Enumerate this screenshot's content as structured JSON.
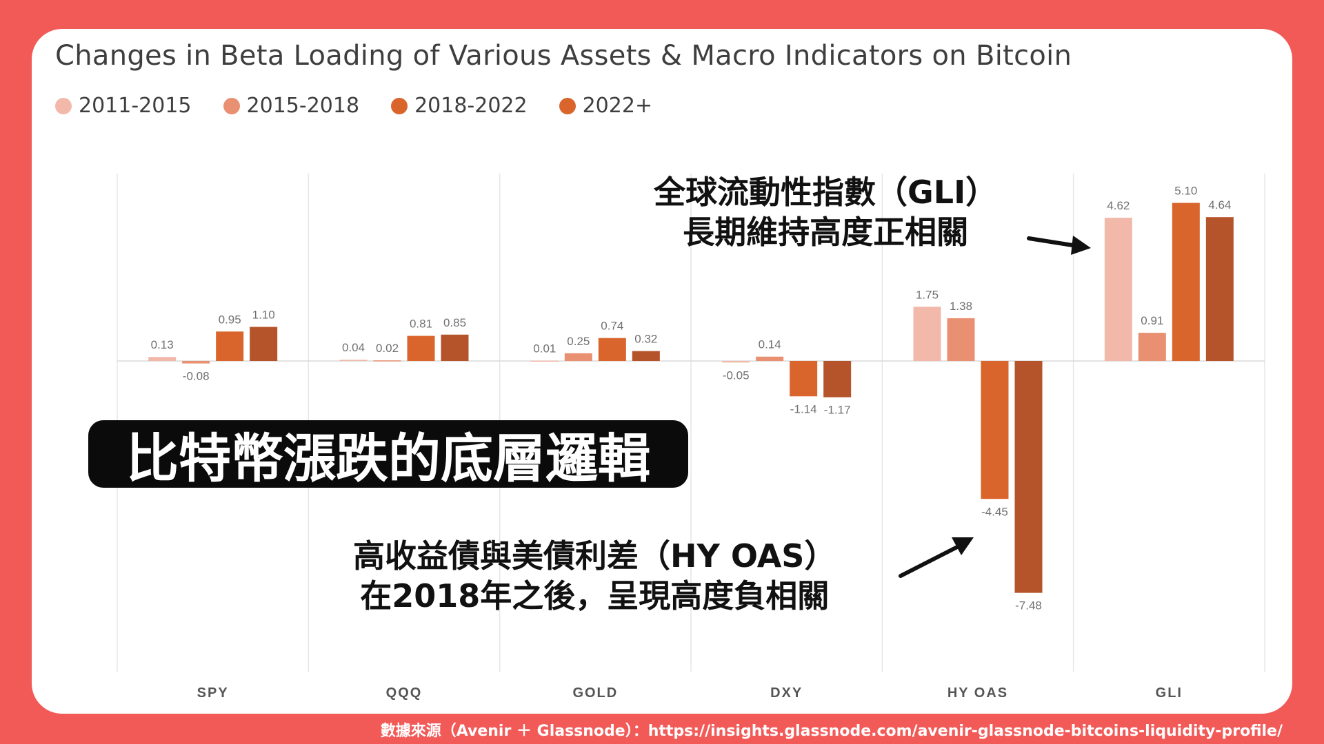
{
  "chart_data": {
    "type": "bar",
    "title": "Changes in Beta Loading of Various Assets & Macro Indicators on Bitcoin",
    "categories": [
      "SPY",
      "QQQ",
      "GOLD",
      "DXY",
      "HY OAS",
      "GLI"
    ],
    "series": [
      {
        "name": "2011-2015",
        "color": "#f2b9aa",
        "values": [
          0.13,
          0.04,
          0.01,
          -0.05,
          1.75,
          4.62
        ]
      },
      {
        "name": "2015-2018",
        "color": "#ea9072",
        "values": [
          -0.08,
          0.02,
          0.25,
          0.14,
          1.38,
          0.91
        ]
      },
      {
        "name": "2018-2022",
        "color": "#d9652c",
        "values": [
          0.95,
          0.81,
          0.74,
          -1.14,
          -4.45,
          5.1
        ]
      },
      {
        "name": "2022+",
        "color": "#b5532a",
        "values": [
          1.1,
          0.85,
          0.32,
          -1.17,
          -7.48,
          4.64
        ]
      }
    ],
    "labels": [
      [
        "0.13",
        "0.04",
        "0.01",
        "-0.05",
        "1.75",
        "4.62"
      ],
      [
        "-0.08",
        "0.02",
        "0.25",
        "0.14",
        "1.38",
        "0.91"
      ],
      [
        "0.95",
        "0.81",
        "0.74",
        "-1.14",
        "-4.45",
        "5.10"
      ],
      [
        "1.10",
        "0.85",
        "0.32",
        "-1.17",
        "-7.48",
        "4.64"
      ]
    ],
    "ylim": [
      -10,
      6
    ],
    "legend": "top-left",
    "grid": "vertical category separators"
  },
  "annotations": {
    "gli_line1": "全球流動性指數（GLI）",
    "gli_line2": "長期維持高度正相關",
    "hyoas_line1": "高收益債與美債利差（HY OAS）",
    "hyoas_line2": "在2018年之後，呈現高度負相關"
  },
  "banner": "比特幣漲跌的底層邏輯",
  "source": "數據來源（Avenir ＋ Glassnode）：https://insights.glassnode.com/avenir-glassnode-bitcoins-liquidity-profile/"
}
